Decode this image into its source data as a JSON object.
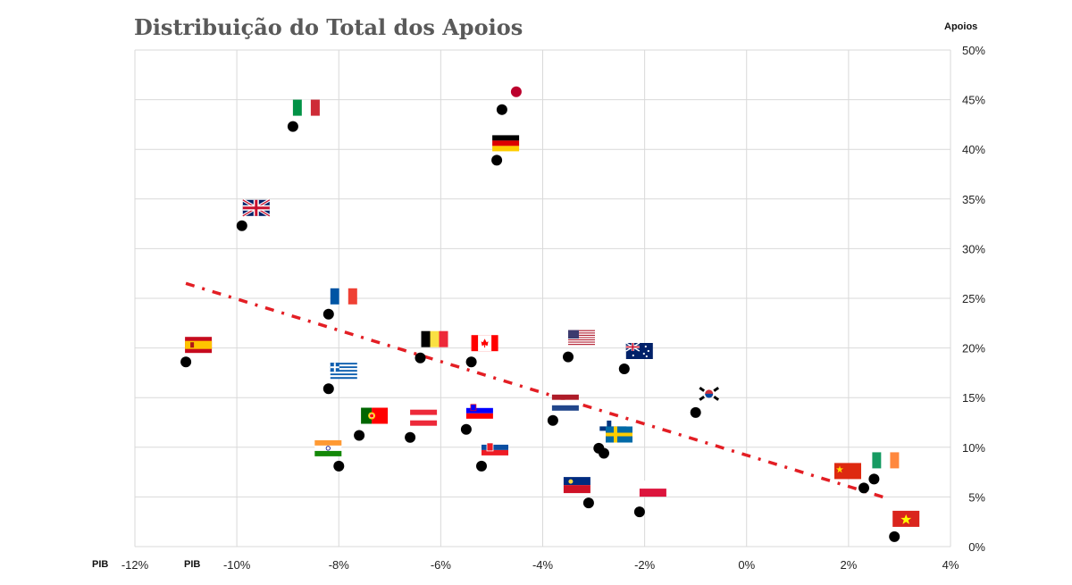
{
  "chart_data": {
    "type": "scatter",
    "title": "Distribuição do Total dos Apoios",
    "ylabel": "Apoios",
    "xlabel_left": "PIB",
    "xlabel_inner": "PIB",
    "xlim": [
      -12,
      4
    ],
    "ylim": [
      0,
      50
    ],
    "x_ticks": [
      "-12%",
      "-10%",
      "-8%",
      "-6%",
      "-4%",
      "-2%",
      "0%",
      "2%",
      "4%"
    ],
    "y_ticks": [
      "0%",
      "5%",
      "10%",
      "15%",
      "20%",
      "25%",
      "30%",
      "35%",
      "40%",
      "45%",
      "50%"
    ],
    "grid": true,
    "trendline": {
      "style": "dash-dot",
      "color": "#e31e24",
      "x": [
        -11.0,
        2.8
      ],
      "y": [
        26.5,
        4.8
      ]
    },
    "points": [
      {
        "flag": "italy",
        "x": -8.9,
        "y": 42.3
      },
      {
        "flag": "japan",
        "x": -4.8,
        "y": 44.0
      },
      {
        "flag": "germany",
        "x": -4.9,
        "y": 38.9
      },
      {
        "flag": "uk",
        "x": -9.9,
        "y": 32.3
      },
      {
        "flag": "france",
        "x": -8.2,
        "y": 23.4
      },
      {
        "flag": "spain",
        "x": -11.0,
        "y": 18.6
      },
      {
        "flag": "belgium",
        "x": -6.4,
        "y": 19.0
      },
      {
        "flag": "canada",
        "x": -5.4,
        "y": 18.6
      },
      {
        "flag": "usa",
        "x": -3.5,
        "y": 19.1
      },
      {
        "flag": "australia",
        "x": -2.4,
        "y": 17.9
      },
      {
        "flag": "greece",
        "x": -8.2,
        "y": 15.9
      },
      {
        "flag": "netherlands",
        "x": -3.8,
        "y": 12.7
      },
      {
        "flag": "south-korea",
        "x": -1.0,
        "y": 13.5
      },
      {
        "flag": "portugal",
        "x": -7.6,
        "y": 11.2
      },
      {
        "flag": "austria",
        "x": -6.6,
        "y": 11.0
      },
      {
        "flag": "slovenia",
        "x": -5.5,
        "y": 11.8
      },
      {
        "flag": "finland",
        "x": -2.9,
        "y": 9.9
      },
      {
        "flag": "sweden",
        "x": -2.8,
        "y": 9.4
      },
      {
        "flag": "india",
        "x": -8.0,
        "y": 8.1
      },
      {
        "flag": "slovakia",
        "x": -5.2,
        "y": 8.1
      },
      {
        "flag": "liechtenstein",
        "x": -3.1,
        "y": 4.4
      },
      {
        "flag": "poland",
        "x": -2.1,
        "y": 3.5
      },
      {
        "flag": "china",
        "x": 2.3,
        "y": 5.9
      },
      {
        "flag": "ireland",
        "x": 2.5,
        "y": 6.8
      },
      {
        "flag": "vietnam",
        "x": 2.9,
        "y": 1.0
      }
    ]
  },
  "colors": {
    "marker": "#000000",
    "grid": "#d9d9d9",
    "trend": "#e31e24"
  }
}
